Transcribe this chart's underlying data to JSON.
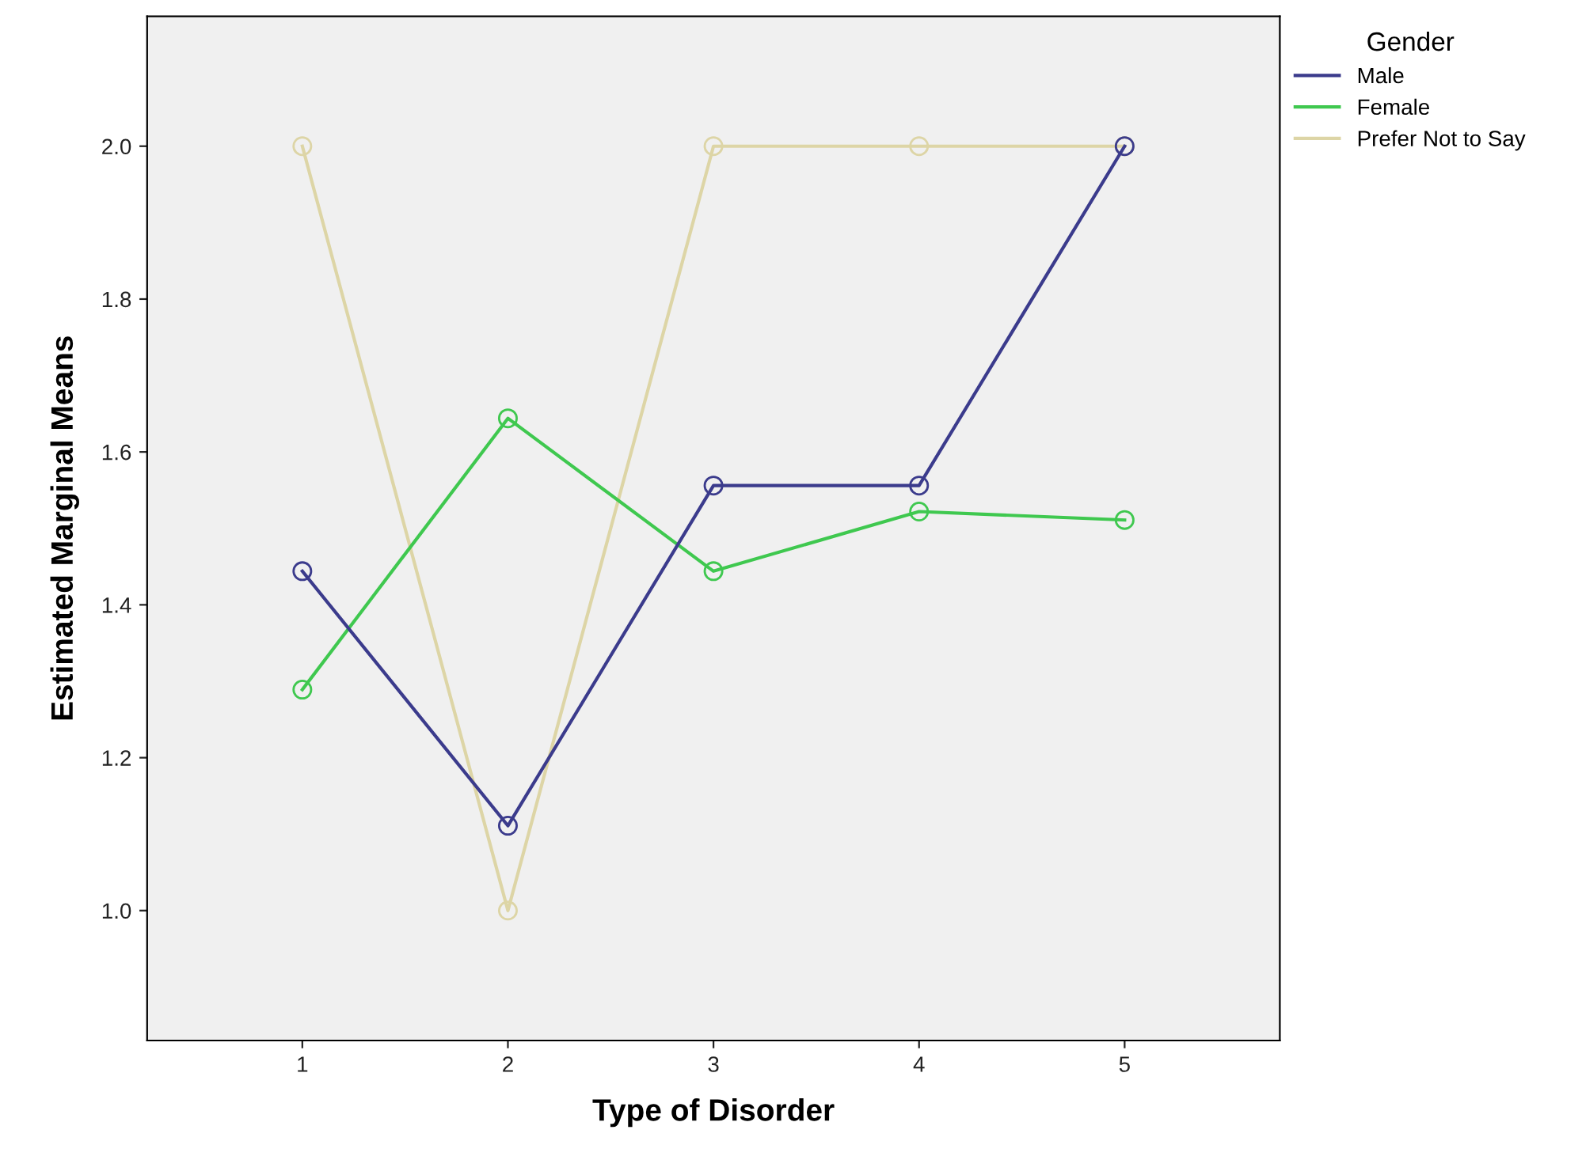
{
  "chart_data": {
    "type": "line",
    "xlabel": "Type of Disorder",
    "ylabel": "Estimated Marginal Means",
    "legend_title": "Gender",
    "categories": [
      "1",
      "2",
      "3",
      "4",
      "5"
    ],
    "series": [
      {
        "name": "Male",
        "color": "#3b3b8c",
        "values": [
          1.444,
          1.111,
          1.556,
          1.556,
          2.0
        ]
      },
      {
        "name": "Female",
        "color": "#3fc84f",
        "values": [
          1.289,
          1.644,
          1.444,
          1.522,
          1.511
        ]
      },
      {
        "name": "Prefer Not to Say",
        "color": "#ddd5a6",
        "values": [
          2.0,
          1.0,
          2.0,
          2.0,
          2.0
        ]
      }
    ],
    "ylim": [
      0.83,
      2.17
    ],
    "yticks": [
      {
        "value": 1.0,
        "label": "1.0"
      },
      {
        "value": 1.2,
        "label": "1.2"
      },
      {
        "value": 1.4,
        "label": "1.4"
      },
      {
        "value": 1.6,
        "label": "1.6"
      },
      {
        "value": 1.8,
        "label": "1.8"
      },
      {
        "value": 2.0,
        "label": "2.0"
      }
    ],
    "marker": "circle",
    "line_style": "solid",
    "grid": false,
    "legend": "top right"
  }
}
